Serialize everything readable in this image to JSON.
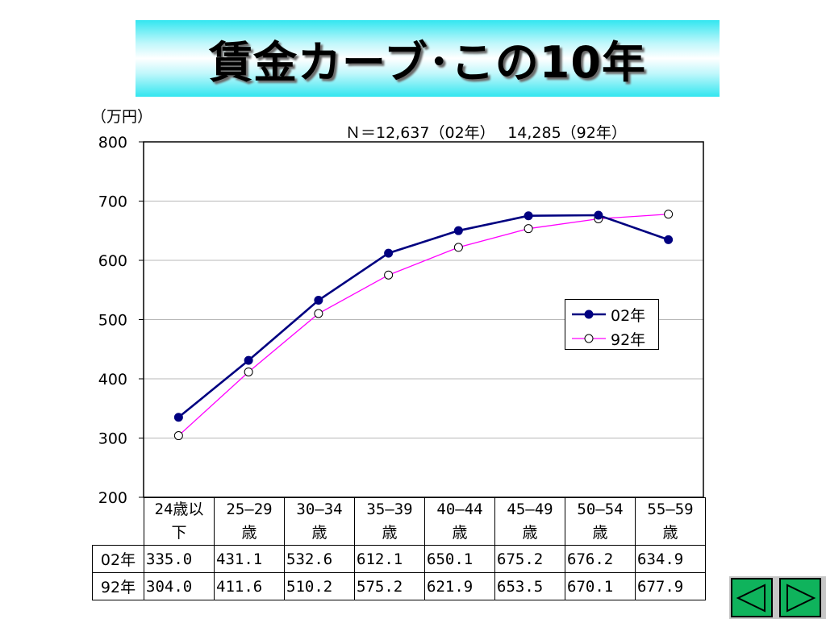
{
  "slide": {
    "title": "賃金カーブ･この10年",
    "unit_label": "（万円）",
    "n_note": "Ｎ＝12,637（02年）　 14,285（92年）"
  },
  "chart_data": {
    "type": "line",
    "title": "賃金カーブ･この10年",
    "ylabel": "（万円）",
    "xlabel": "",
    "ylim": [
      200,
      800
    ],
    "yticks": [
      "800",
      "700",
      "600",
      "500",
      "400",
      "300",
      "200"
    ],
    "grid": true,
    "legend_position": "right-middle",
    "categories": [
      "24歳以下",
      "25―29歳",
      "30―34歳",
      "35―39歳",
      "40―44歳",
      "45―49歳",
      "50―54歳",
      "55―59歳"
    ],
    "series": [
      {
        "name": "02年",
        "values": [
          335.0,
          431.1,
          532.6,
          612.1,
          650.1,
          675.2,
          676.2,
          634.9
        ],
        "color": "#000080",
        "marker": "filled-circle"
      },
      {
        "name": "92年",
        "values": [
          304.0,
          411.6,
          510.2,
          575.2,
          621.9,
          653.5,
          670.1,
          677.9
        ],
        "color": "#ff00ff",
        "marker": "hollow-circle"
      }
    ]
  },
  "table": {
    "category_lines": [
      [
        "24歳以",
        "下"
      ],
      [
        "25―29",
        "歳"
      ],
      [
        "30―34",
        "歳"
      ],
      [
        "35―39",
        "歳"
      ],
      [
        "40―44",
        "歳"
      ],
      [
        "45―49",
        "歳"
      ],
      [
        "50―54",
        "歳"
      ],
      [
        "55―59",
        "歳"
      ]
    ],
    "rows": [
      {
        "label": "02年",
        "values": [
          "335.0",
          "431.1",
          "532.6",
          "612.1",
          "650.1",
          "675.2",
          "676.2",
          "634.9"
        ]
      },
      {
        "label": "92年",
        "values": [
          "304.0",
          "411.6",
          "510.2",
          "575.2",
          "621.9",
          "653.5",
          "670.1",
          "677.9"
        ]
      }
    ]
  },
  "nav": {
    "prev_icon": "triangle-left-icon",
    "next_icon": "triangle-right-icon",
    "button_color": "#0fb35c"
  }
}
